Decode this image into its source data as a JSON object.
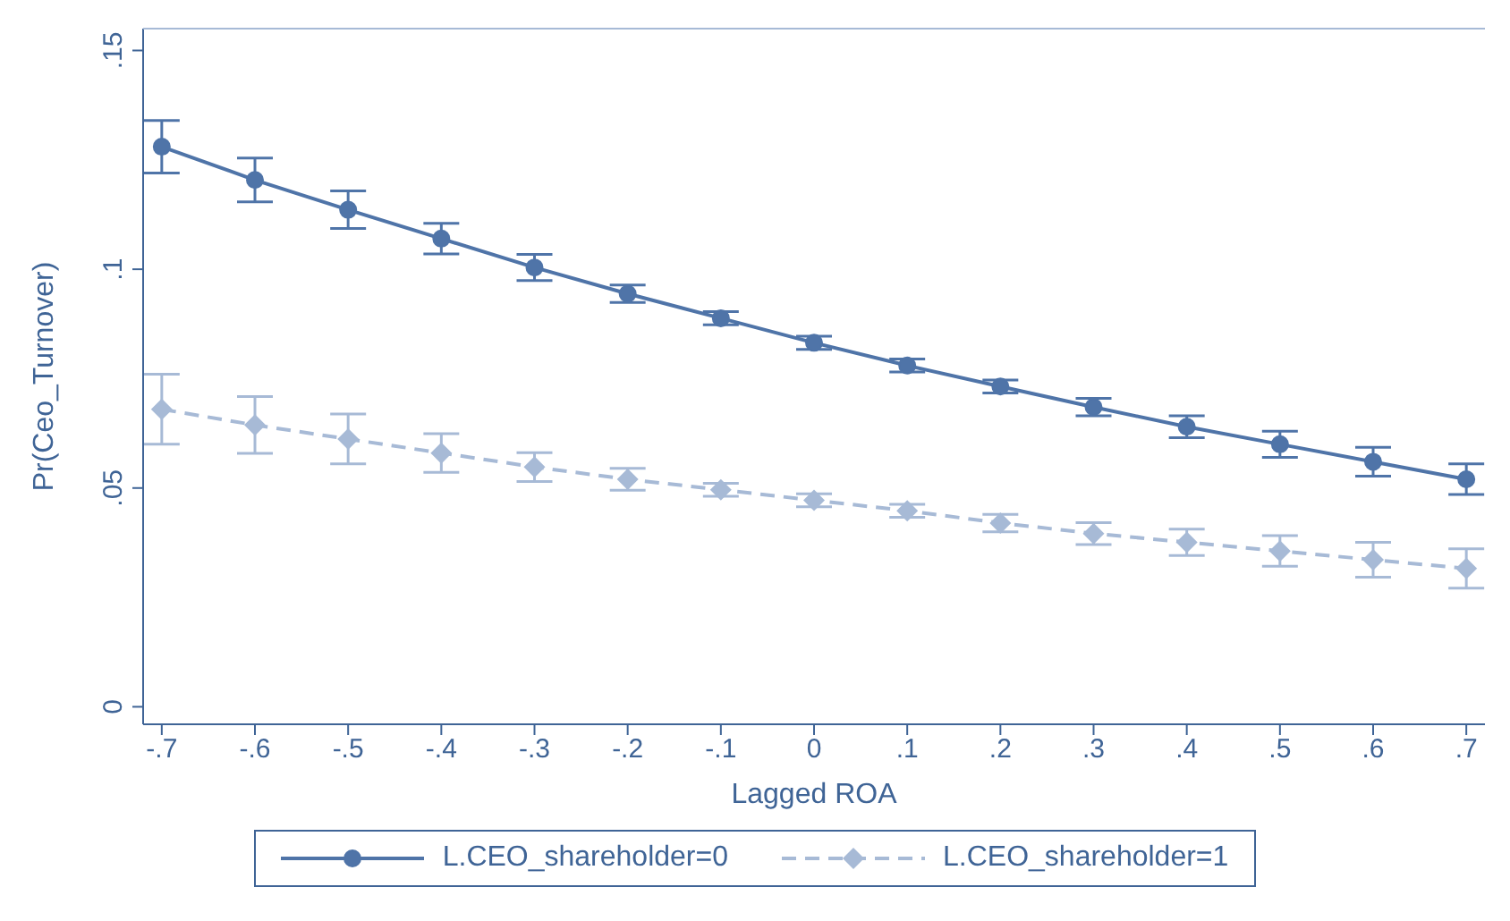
{
  "chart_data": {
    "type": "line",
    "xlabel": "Lagged ROA",
    "ylabel": "Pr(Ceo_Turnover)",
    "x": [
      -0.7,
      -0.6,
      -0.5,
      -0.4,
      -0.3,
      -0.2,
      -0.1,
      0,
      0.1,
      0.2,
      0.3,
      0.4,
      0.5,
      0.6,
      0.7
    ],
    "series": [
      {
        "name": "L.CEO_shareholder=0",
        "color": "#4f74a8",
        "marker": "circle",
        "line_style": "solid",
        "values": [
          0.128,
          0.1204,
          0.1136,
          0.107,
          0.1004,
          0.0944,
          0.0888,
          0.0832,
          0.078,
          0.0732,
          0.0685,
          0.064,
          0.06,
          0.056,
          0.052
        ],
        "errors": [
          0.006,
          0.005,
          0.0043,
          0.0035,
          0.003,
          0.002,
          0.0015,
          0.0015,
          0.0015,
          0.0015,
          0.002,
          0.0025,
          0.003,
          0.0033,
          0.0035
        ]
      },
      {
        "name": "L.CEO_shareholder=1",
        "color": "#a7bad6",
        "marker": "diamond",
        "line_style": "dashed",
        "values": [
          0.068,
          0.0644,
          0.0612,
          0.058,
          0.0548,
          0.052,
          0.0496,
          0.0472,
          0.0448,
          0.042,
          0.0396,
          0.0376,
          0.0356,
          0.0336,
          0.0316
        ],
        "errors": [
          0.008,
          0.0065,
          0.0057,
          0.0044,
          0.0033,
          0.0025,
          0.0015,
          0.0015,
          0.0015,
          0.002,
          0.0025,
          0.003,
          0.0035,
          0.004,
          0.0045
        ]
      }
    ],
    "xlim": [
      -0.72,
      0.72
    ],
    "xticks": [
      {
        "value": -0.7,
        "label": "-.7"
      },
      {
        "value": -0.6,
        "label": "-.6"
      },
      {
        "value": -0.5,
        "label": "-.5"
      },
      {
        "value": -0.4,
        "label": "-.4"
      },
      {
        "value": -0.3,
        "label": "-.3"
      },
      {
        "value": -0.2,
        "label": "-.2"
      },
      {
        "value": -0.1,
        "label": "-.1"
      },
      0,
      {
        "value": 0.1,
        "label": ".1"
      },
      {
        "value": 0.2,
        "label": ".2"
      },
      {
        "value": 0.3,
        "label": ".3"
      },
      {
        "value": 0.4,
        "label": ".4"
      },
      {
        "value": 0.5,
        "label": ".5"
      },
      {
        "value": 0.6,
        "label": ".6"
      },
      {
        "value": 0.7,
        "label": ".7"
      }
    ],
    "ylim": [
      -0.004,
      0.155
    ],
    "yticks": [
      0,
      {
        "value": 0.05,
        "label": ".05"
      },
      {
        "value": 0.1,
        "label": ".1"
      },
      {
        "value": 0.15,
        "label": ".15"
      }
    ],
    "grid": false,
    "legend": "bottom"
  }
}
